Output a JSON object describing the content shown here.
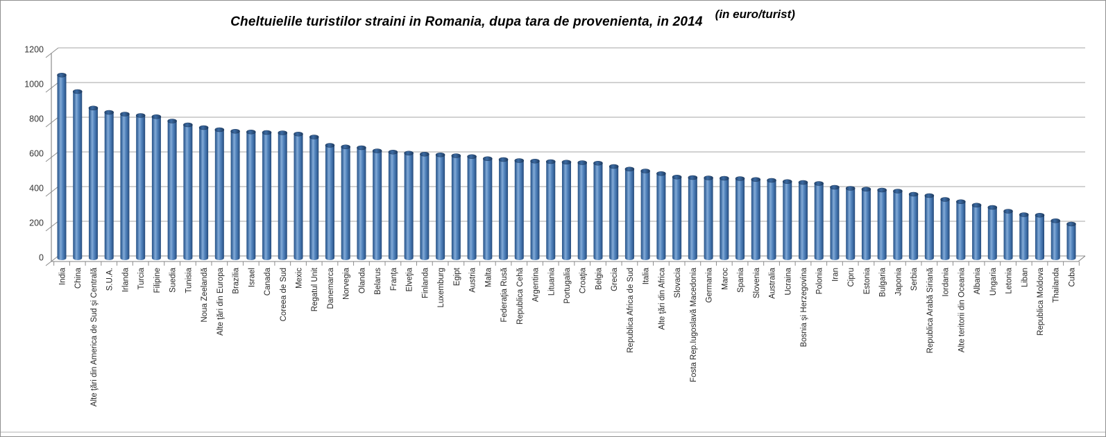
{
  "title": {
    "main": "Cheltuielile turistilor straini in Romania, dupa tara de provenienta, in 2014",
    "suffix": "(in euro/turist)"
  },
  "chart_data": {
    "type": "bar",
    "style": "3d-cylinder",
    "title": "Cheltuielile turistilor straini in Romania, dupa tara de provenienta, in 2014",
    "unit": "(in euro/turist)",
    "xlabel": "",
    "ylabel": "",
    "ylim": [
      0,
      1200
    ],
    "yticks": [
      0,
      200,
      400,
      600,
      800,
      1000,
      1200
    ],
    "grid": true,
    "legend": "none",
    "bar_color": "#4f81bd",
    "gridline_color": "#a6a6a6",
    "axis_color": "#808080",
    "text_color": "#262626",
    "categories": [
      "India",
      "China",
      "Alte ţări din America de Sud şi Centrală",
      "S.U.A.",
      "Irlanda",
      "Turcia",
      "Filipine",
      "Suedia",
      "Tunisia",
      "Noua Zeelandă",
      "Alte ţări din Europa",
      "Brazilia",
      "Israel",
      "Canada",
      "Coreea de Sud",
      "Mexic",
      "Regatul Unit",
      "Danemarca",
      "Norvegia",
      "Olanda",
      "Belarus",
      "Franţa",
      "Elveţia",
      "Finlanda",
      "Luxemburg",
      "Egipt",
      "Austria",
      "Malta",
      "Federaţia Rusă",
      "Republica Cehă",
      "Argentina",
      "Lituania",
      "Portugalia",
      "Croaţia",
      "Belgia",
      "Grecia",
      "Republica Africa de Sud",
      "Italia",
      "Alte ţări din Africa",
      "Slovacia",
      "Fosta Rep.Iugoslavă Macedonia",
      "Germania",
      "Maroc",
      "Spania",
      "Slovenia",
      "Australia",
      "Ucraina",
      "Bosnia şi Herzegovina",
      "Polonia",
      "Iran",
      "Cipru",
      "Estonia",
      "Bulgaria",
      "Japonia",
      "Serbia",
      "Republica Arabă Siriană",
      "Iordania",
      "Alte teritorii din Oceania",
      "Albania",
      "Ungaria",
      "Letonia",
      "Liban",
      "Republica Moldova",
      "Thailanda",
      "Cuba"
    ],
    "values": [
      1055,
      960,
      865,
      840,
      830,
      822,
      815,
      790,
      768,
      752,
      740,
      731,
      727,
      724,
      722,
      715,
      698,
      650,
      641,
      636,
      618,
      611,
      605,
      599,
      595,
      590,
      585,
      573,
      568,
      562,
      559,
      556,
      553,
      550,
      547,
      528,
      513,
      502,
      487,
      467,
      464,
      462,
      460,
      458,
      453,
      448,
      441,
      436,
      430,
      408,
      402,
      397,
      392,
      386,
      368,
      360,
      338,
      325,
      305,
      292,
      270,
      250,
      247,
      215,
      196
    ]
  }
}
